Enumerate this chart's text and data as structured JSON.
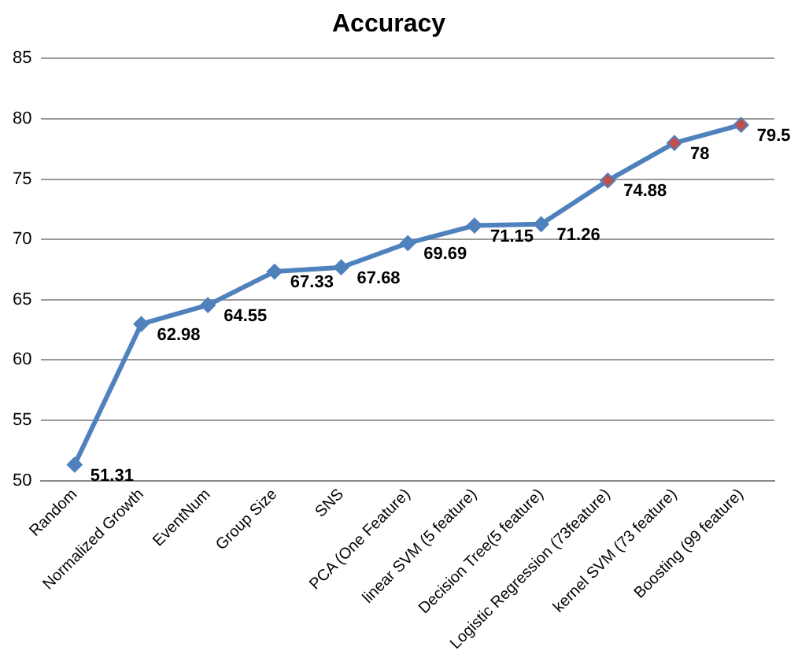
{
  "chart_data": {
    "type": "line",
    "title": "Accuracy",
    "categories": [
      "Random",
      "Normalized Growth",
      "EventNum",
      "Group Size",
      "SNS",
      "PCA (One Feature)",
      "linear SVM (5 feature)",
      "Decision Tree(5 feature)",
      "Logistic Regression (73feature)",
      "kernel SVM (73 feature)",
      "Boosting (99 feature)"
    ],
    "series": [
      {
        "color": "#4f81bd",
        "values": [
          51.31,
          62.98,
          64.55,
          67.33,
          67.68,
          69.69,
          71.15,
          71.26,
          74.88,
          78,
          79.5
        ],
        "colors": [
          "#4f81bd",
          "#4f81bd",
          "#4f81bd",
          "#4f81bd",
          "#4f81bd",
          "#4f81bd",
          "#4f81bd",
          "#4f81bd",
          "#c0504d",
          "#c0504d",
          "#c0504d"
        ]
      }
    ],
    "ylim": [
      50,
      85
    ],
    "yticks": [
      50,
      55,
      60,
      65,
      70,
      75,
      80,
      85
    ],
    "grid": "y",
    "marker": "diamond",
    "line_style": "solid",
    "data_labels": true,
    "legend": false
  }
}
